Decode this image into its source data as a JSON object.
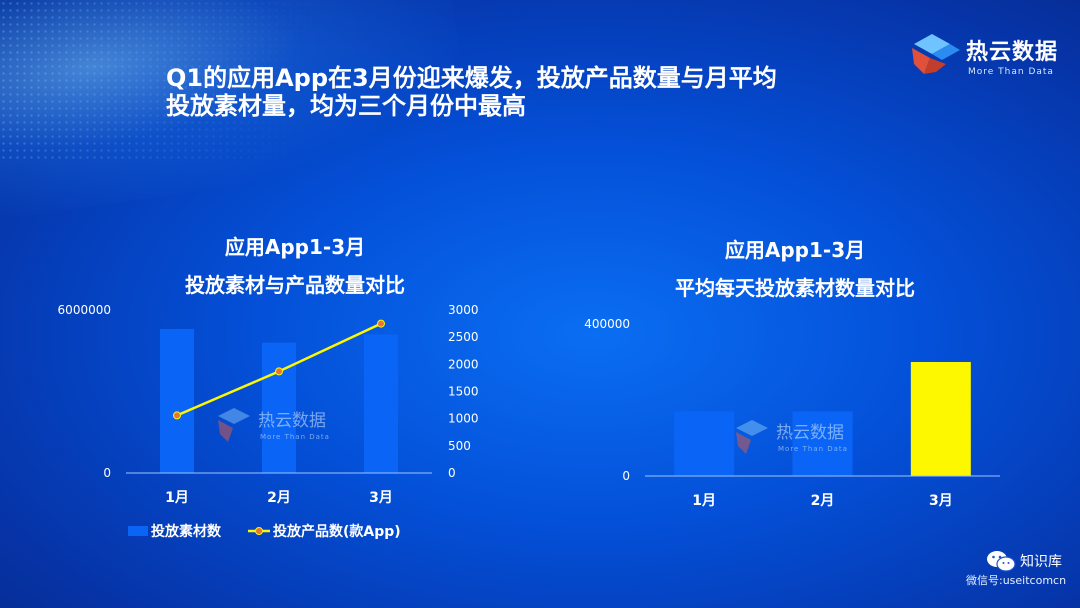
{
  "headline": {
    "line1": "Q1的应用App在3月份迎来爆发，投放产品数量与月平均",
    "line2": "投放素材量，均为三个月份中最高"
  },
  "brand": {
    "name": "热云数据",
    "sub": "More Than Data"
  },
  "watermark": {
    "name": "热云数据",
    "sub": "More Than Data"
  },
  "footer": {
    "name": "知识库",
    "account": "微信号:useitcomcn",
    "icon": "wechat-icon"
  },
  "colors": {
    "blue_bar": "#0a64f5",
    "yellow": "#fdf800",
    "axis": "#9ec4ff"
  },
  "chart_data": [
    {
      "type": "bar+line",
      "title": [
        "应用App1-3月",
        "投放素材与产品数量对比"
      ],
      "categories": [
        "1月",
        "2月",
        "3月"
      ],
      "series": [
        {
          "name": "投放素材数",
          "type": "bar",
          "axis": "left",
          "values": [
            5300000,
            4800000,
            5100000
          ]
        },
        {
          "name": "投放产品数(款App)",
          "type": "line",
          "axis": "right",
          "values": [
            1060,
            1870,
            2750
          ]
        }
      ],
      "left_axis": {
        "ticks": [
          "6000000",
          "0"
        ],
        "range": [
          0,
          6000000
        ]
      },
      "right_axis": {
        "ticks": [
          "3000",
          "2500",
          "2000",
          "1500",
          "1000",
          "500",
          "0"
        ],
        "range": [
          0,
          3000
        ]
      },
      "legend": "bottom"
    },
    {
      "type": "bar",
      "title": [
        "应用App1-3月",
        "平均每天投放素材数量对比"
      ],
      "categories": [
        "1月",
        "2月",
        "3月"
      ],
      "values": [
        170000,
        170000,
        300000
      ],
      "bar_colors": [
        "#0a64f5",
        "#0a64f5",
        "#fdf800"
      ],
      "y_axis": {
        "ticks": [
          "400000",
          "0"
        ],
        "range": [
          0,
          400000
        ]
      }
    }
  ]
}
